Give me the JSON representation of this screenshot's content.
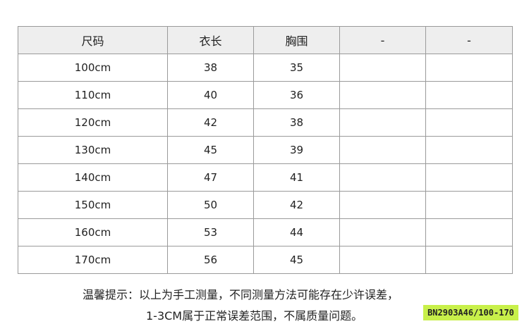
{
  "table": {
    "headers": [
      "尺码",
      "衣长",
      "胸围",
      "-",
      "-"
    ],
    "rows": [
      [
        "100cm",
        "38",
        "35",
        "",
        ""
      ],
      [
        "110cm",
        "40",
        "36",
        "",
        ""
      ],
      [
        "120cm",
        "42",
        "38",
        "",
        ""
      ],
      [
        "130cm",
        "45",
        "39",
        "",
        ""
      ],
      [
        "140cm",
        "47",
        "41",
        "",
        ""
      ],
      [
        "150cm",
        "50",
        "42",
        "",
        ""
      ],
      [
        "160cm",
        "53",
        "44",
        "",
        ""
      ],
      [
        "170cm",
        "56",
        "45",
        "",
        ""
      ]
    ]
  },
  "note": {
    "line1": "温馨提示：以上为手工测量，不同测量方法可能存在少许误差，",
    "line2": "1-3CM属于正常误差范围，不属质量问题。"
  },
  "badge": {
    "text": "BN2903A46/100-170",
    "color": "#c8f04a"
  }
}
